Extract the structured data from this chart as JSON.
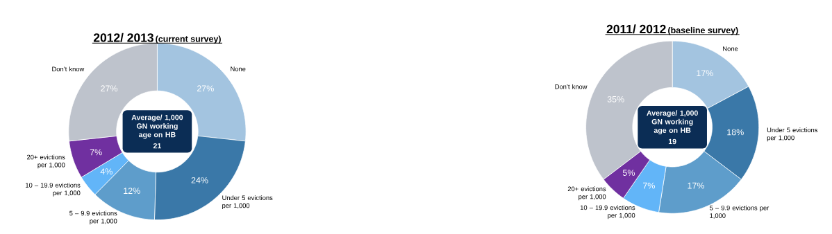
{
  "chart_data": [
    {
      "type": "donut",
      "title": "2012/ 2013",
      "subtitle": "(current survey)",
      "categories": [
        "None",
        "Under 5 evictions per 1,000",
        "5 – 9.9 evictions per 1,000",
        "10 – 19.9 evictions per 1,000",
        "20+ evictions per 1,000",
        "Don’t know"
      ],
      "values": [
        27,
        24,
        12,
        4,
        7,
        27
      ],
      "value_labels": [
        "27%",
        "24%",
        "12%",
        "4%",
        "7%",
        "27%"
      ],
      "colors": [
        "#a3c4e0",
        "#3a78a8",
        "#5e9dcb",
        "#62b5f8",
        "#7030a0",
        "#bec3cc"
      ],
      "annotations": [
        "Average/ 1,000 GN working age on HB",
        "21"
      ]
    },
    {
      "type": "donut",
      "title": "2011/ 2012",
      "subtitle": "(baseline survey)",
      "categories": [
        "None",
        "Under 5 evictions per 1,000",
        "5 – 9.9 evictions per 1,000",
        "10 – 19.9 evictions per 1,000",
        "20+ evictions per 1,000",
        "Don’t know"
      ],
      "values": [
        17,
        18,
        17,
        7,
        5,
        35
      ],
      "value_labels": [
        "17%",
        "18%",
        "17%",
        "7%",
        "5%",
        "35%"
      ],
      "colors": [
        "#a3c4e0",
        "#3a78a8",
        "#5e9dcb",
        "#62b5f8",
        "#7030a0",
        "#bec3cc"
      ],
      "annotations": [
        "Average/ 1,000 GN working age on HB",
        "19"
      ]
    }
  ]
}
